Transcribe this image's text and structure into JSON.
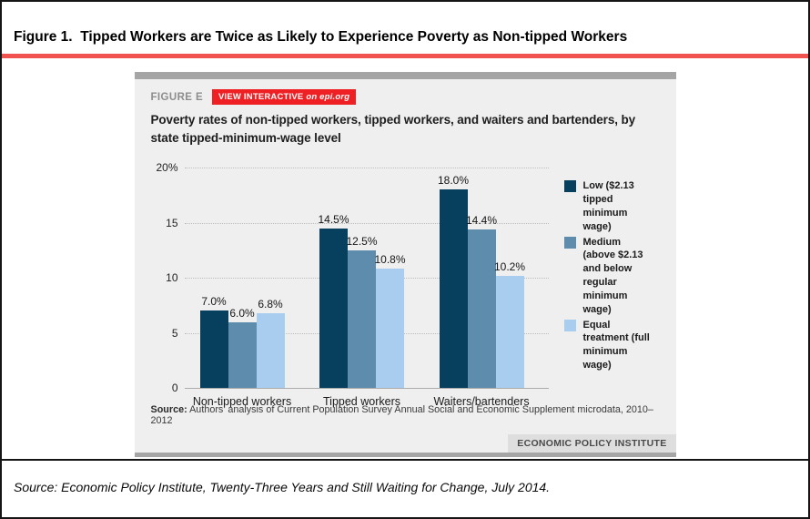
{
  "figure": {
    "title": "Figure 1.  Tipped Workers are Twice as Likely to Experience Poverty as Non-tipped Workers",
    "caption": "Source: Economic Policy Institute, Twenty-Three Years and Still Waiting for Change, July 2014."
  },
  "panel": {
    "figure_label": "FIGURE E",
    "badge_text": "VIEW INTERACTIVE",
    "badge_suffix": "on epi.org",
    "chart_title": "Poverty rates of non-tipped workers, tipped workers, and waiters and bartenders, by state tipped-minimum-wage level",
    "source_label": "Source:",
    "source_text": "Authors’ analysis of Current Population Survey Annual Social and Economic Supplement microdata, 2010–2012",
    "epi_badge": "ECONOMIC POLICY INSTITUTE"
  },
  "colors": {
    "red_rule": "#f2524d",
    "badge_red": "#ee2024",
    "panel_bg": "#efefef",
    "panel_strip": "#a5a5a5",
    "epi_badge_bg": "#dedede",
    "bar_low": "#07405f",
    "bar_medium": "#5e8cad",
    "bar_equal": "#a9cdee"
  },
  "chart_data": {
    "type": "bar",
    "title": "Poverty rates of non-tipped workers, tipped workers, and waiters and bartenders, by state tipped-minimum-wage level",
    "categories": [
      "Non-tipped workers",
      "Tipped workers",
      "Waiters/bartenders"
    ],
    "series": [
      {
        "name": "Low ($2.13 tipped minimum wage)",
        "color": "#07405f",
        "values": [
          7.0,
          14.5,
          18.0
        ]
      },
      {
        "name": "Medium (above $2.13 and below regular minimum wage)",
        "color": "#5e8cad",
        "values": [
          6.0,
          12.5,
          14.4
        ]
      },
      {
        "name": "Equal treatment (full minimum wage)",
        "color": "#a9cdee",
        "values": [
          6.8,
          10.8,
          10.2
        ]
      }
    ],
    "value_labels": [
      [
        "7.0%",
        "14.5%",
        "18.0%"
      ],
      [
        "6.0%",
        "12.5%",
        "14.4%"
      ],
      [
        "6.8%",
        "10.8%",
        "10.2%"
      ]
    ],
    "ylim": [
      0,
      20
    ],
    "y_ticks": [
      {
        "label": "20%",
        "value": 20
      },
      {
        "label": "15",
        "value": 15
      },
      {
        "label": "10",
        "value": 10
      },
      {
        "label": "5",
        "value": 5
      },
      {
        "label": "0",
        "value": 0
      }
    ],
    "grid": "dotted-horizontal",
    "legend_position": "right",
    "source_note": "Source: Authors’ analysis of Current Population Survey Annual Social and Economic Supplement microdata, 2010–2012"
  }
}
